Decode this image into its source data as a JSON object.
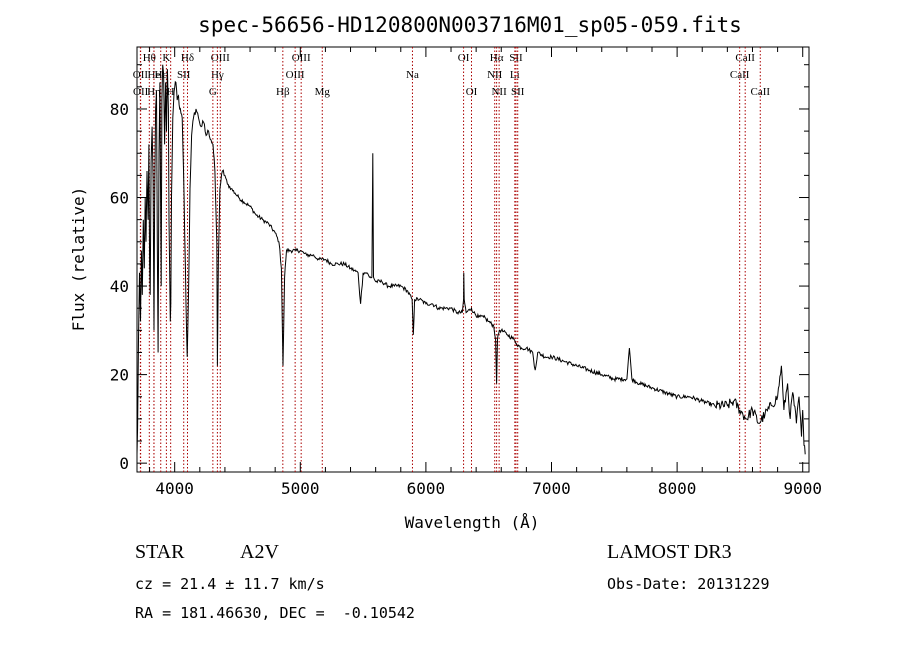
{
  "chart_data": {
    "type": "line",
    "title": "spec-56656-HD120800N003716M01_sp05-059.fits",
    "xlabel": "Wavelength (Å)",
    "ylabel": "Flux (relative)",
    "xlim": [
      3700,
      9050
    ],
    "ylim": [
      -2,
      94
    ],
    "xticks": [
      4000,
      5000,
      6000,
      7000,
      8000,
      9000
    ],
    "yticks": [
      0,
      20,
      40,
      60,
      80
    ],
    "grid": false,
    "line_color": "#000000",
    "marker_color": "#aa0000",
    "series": [
      {
        "name": "spectrum",
        "points": [
          [
            3700,
            2
          ],
          [
            3705,
            8
          ],
          [
            3712,
            28
          ],
          [
            3720,
            43
          ],
          [
            3728,
            32
          ],
          [
            3735,
            48
          ],
          [
            3742,
            38
          ],
          [
            3750,
            55
          ],
          [
            3758,
            44
          ],
          [
            3765,
            60
          ],
          [
            3772,
            50
          ],
          [
            3780,
            66
          ],
          [
            3788,
            55
          ],
          [
            3795,
            72
          ],
          [
            3800,
            45
          ],
          [
            3805,
            38
          ],
          [
            3812,
            68
          ],
          [
            3820,
            76
          ],
          [
            3828,
            64
          ],
          [
            3835,
            30
          ],
          [
            3840,
            58
          ],
          [
            3848,
            80
          ],
          [
            3855,
            84
          ],
          [
            3862,
            50
          ],
          [
            3868,
            25
          ],
          [
            3875,
            70
          ],
          [
            3882,
            86
          ],
          [
            3888,
            60
          ],
          [
            3893,
            40
          ],
          [
            3898,
            82
          ],
          [
            3905,
            90
          ],
          [
            3912,
            88
          ],
          [
            3920,
            72
          ],
          [
            3928,
            86
          ],
          [
            3935,
            75
          ],
          [
            3942,
            89
          ],
          [
            3950,
            80
          ],
          [
            3955,
            55
          ],
          [
            3960,
            43
          ],
          [
            3965,
            32
          ],
          [
            3969,
            36
          ],
          [
            3975,
            60
          ],
          [
            3985,
            78
          ],
          [
            3995,
            84
          ],
          [
            4010,
            86
          ],
          [
            4020,
            82
          ],
          [
            4030,
            83
          ],
          [
            4040,
            80
          ],
          [
            4050,
            79
          ],
          [
            4060,
            78
          ],
          [
            4075,
            60
          ],
          [
            4090,
            36
          ],
          [
            4100,
            24
          ],
          [
            4110,
            38
          ],
          [
            4122,
            62
          ],
          [
            4135,
            74
          ],
          [
            4150,
            78
          ],
          [
            4170,
            80
          ],
          [
            4190,
            78
          ],
          [
            4210,
            76
          ],
          [
            4230,
            77
          ],
          [
            4250,
            74
          ],
          [
            4270,
            75
          ],
          [
            4290,
            73
          ],
          [
            4305,
            72
          ],
          [
            4320,
            66
          ],
          [
            4335,
            50
          ],
          [
            4340,
            22
          ],
          [
            4348,
            46
          ],
          [
            4360,
            62
          ],
          [
            4380,
            66
          ],
          [
            4400,
            65
          ],
          [
            4420,
            63
          ],
          [
            4450,
            62
          ],
          [
            4480,
            61
          ],
          [
            4510,
            60
          ],
          [
            4550,
            59
          ],
          [
            4600,
            58
          ],
          [
            4650,
            56
          ],
          [
            4700,
            55
          ],
          [
            4750,
            54
          ],
          [
            4800,
            52
          ],
          [
            4830,
            50
          ],
          [
            4850,
            44
          ],
          [
            4862,
            22
          ],
          [
            4875,
            42
          ],
          [
            4890,
            48
          ],
          [
            4920,
            48
          ],
          [
            4960,
            48
          ],
          [
            5000,
            48
          ],
          [
            5050,
            47
          ],
          [
            5100,
            47
          ],
          [
            5150,
            46
          ],
          [
            5200,
            46
          ],
          [
            5250,
            45
          ],
          [
            5300,
            45
          ],
          [
            5350,
            45
          ],
          [
            5400,
            44
          ],
          [
            5460,
            43
          ],
          [
            5480,
            36
          ],
          [
            5500,
            43
          ],
          [
            5530,
            43
          ],
          [
            5550,
            42
          ],
          [
            5570,
            42
          ],
          [
            5577,
            70
          ],
          [
            5583,
            42
          ],
          [
            5600,
            41
          ],
          [
            5650,
            41
          ],
          [
            5700,
            40
          ],
          [
            5750,
            40
          ],
          [
            5800,
            40
          ],
          [
            5850,
            39
          ],
          [
            5890,
            37
          ],
          [
            5900,
            29
          ],
          [
            5910,
            37
          ],
          [
            5950,
            37
          ],
          [
            6000,
            36
          ],
          [
            6050,
            36
          ],
          [
            6100,
            35
          ],
          [
            6150,
            35
          ],
          [
            6200,
            35
          ],
          [
            6250,
            34
          ],
          [
            6290,
            34
          ],
          [
            6300,
            37
          ],
          [
            6302,
            43
          ],
          [
            6305,
            37
          ],
          [
            6320,
            34
          ],
          [
            6363,
            35
          ],
          [
            6380,
            34
          ],
          [
            6420,
            33
          ],
          [
            6460,
            33
          ],
          [
            6500,
            32
          ],
          [
            6540,
            31
          ],
          [
            6555,
            28
          ],
          [
            6563,
            18
          ],
          [
            6570,
            28
          ],
          [
            6585,
            30
          ],
          [
            6600,
            30
          ],
          [
            6650,
            29
          ],
          [
            6700,
            28
          ],
          [
            6720,
            27
          ],
          [
            6760,
            26
          ],
          [
            6800,
            26
          ],
          [
            6850,
            25
          ],
          [
            6870,
            21
          ],
          [
            6890,
            25
          ],
          [
            6950,
            24
          ],
          [
            7000,
            24
          ],
          [
            7100,
            23
          ],
          [
            7200,
            22
          ],
          [
            7300,
            21
          ],
          [
            7400,
            20
          ],
          [
            7500,
            19
          ],
          [
            7600,
            19
          ],
          [
            7620,
            26
          ],
          [
            7640,
            19
          ],
          [
            7700,
            18
          ],
          [
            7800,
            17
          ],
          [
            7900,
            16
          ],
          [
            8000,
            15
          ],
          [
            8100,
            15
          ],
          [
            8200,
            14
          ],
          [
            8300,
            13
          ],
          [
            8400,
            13
          ],
          [
            8450,
            14
          ],
          [
            8500,
            12
          ],
          [
            8550,
            10
          ],
          [
            8600,
            12
          ],
          [
            8650,
            9
          ],
          [
            8700,
            11
          ],
          [
            8750,
            13
          ],
          [
            8800,
            15
          ],
          [
            8830,
            22
          ],
          [
            8850,
            12
          ],
          [
            8880,
            18
          ],
          [
            8900,
            10
          ],
          [
            8920,
            16
          ],
          [
            8950,
            9
          ],
          [
            8970,
            15
          ],
          [
            8990,
            6
          ],
          [
            9000,
            12
          ],
          [
            9010,
            4
          ],
          [
            9020,
            2
          ]
        ]
      }
    ],
    "line_markers": [
      {
        "label": "Hθ",
        "x": 3798,
        "row": 1
      },
      {
        "label": "OII",
        "x": 3727,
        "row": 2
      },
      {
        "label": "He",
        "x": 3835,
        "row": 2
      },
      {
        "label": "OII",
        "x": 3729,
        "row": 3
      },
      {
        "label": "Hη",
        "x": 3835,
        "row": 3
      },
      {
        "label": "Hε",
        "x": 3889,
        "row": 2
      },
      {
        "label": "K",
        "x": 3934,
        "row": 1
      },
      {
        "label": "H",
        "x": 3968,
        "row": 3
      },
      {
        "label": "Hδ",
        "x": 4102,
        "row": 1
      },
      {
        "label": "SII",
        "x": 4072,
        "row": 2
      },
      {
        "label": "OIII",
        "x": 4363,
        "row": 1
      },
      {
        "label": "Hγ",
        "x": 4340,
        "row": 2
      },
      {
        "label": "G",
        "x": 4304,
        "row": 3
      },
      {
        "label": "Hβ",
        "x": 4861,
        "row": 3
      },
      {
        "label": "OIII",
        "x": 5007,
        "row": 1
      },
      {
        "label": "OIII",
        "x": 4959,
        "row": 2
      },
      {
        "label": "Mg",
        "x": 5175,
        "row": 3
      },
      {
        "label": "Na",
        "x": 5893,
        "row": 2
      },
      {
        "label": "OI",
        "x": 6300,
        "row": 1
      },
      {
        "label": "OI",
        "x": 6363,
        "row": 3
      },
      {
        "label": "Hα",
        "x": 6563,
        "row": 1
      },
      {
        "label": "NII",
        "x": 6548,
        "row": 2
      },
      {
        "label": "NII",
        "x": 6583,
        "row": 3
      },
      {
        "label": "SII",
        "x": 6717,
        "row": 1
      },
      {
        "label": "Li",
        "x": 6708,
        "row": 2
      },
      {
        "label": "SII",
        "x": 6731,
        "row": 3
      },
      {
        "label": "CaII",
        "x": 8542,
        "row": 1
      },
      {
        "label": "CaII",
        "x": 8498,
        "row": 2
      },
      {
        "label": "CaII",
        "x": 8662,
        "row": 3
      }
    ]
  },
  "info": {
    "object_class": "STAR",
    "subclass": "A2V",
    "survey": "LAMOST DR3",
    "cz": "cz = 21.4 ± 11.7 km/s",
    "obs_date": "Obs-Date: 20131229",
    "coords": "RA = 181.46630, DEC =  -0.10542"
  }
}
